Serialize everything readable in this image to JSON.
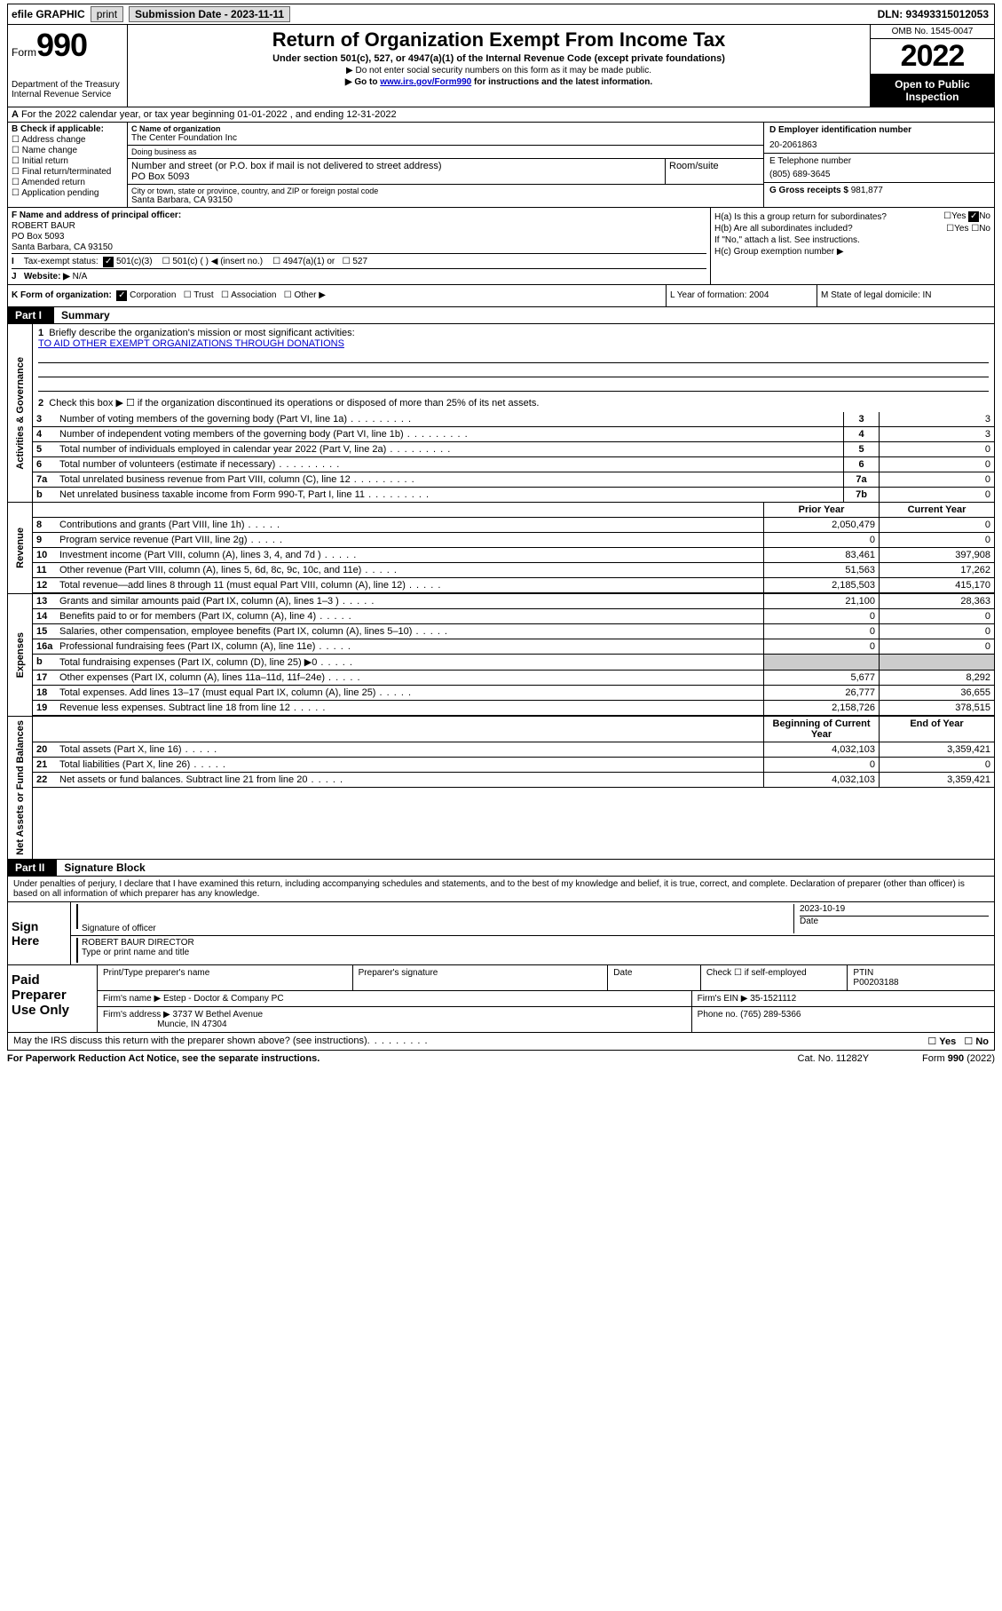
{
  "topbar": {
    "efile": "efile GRAPHIC",
    "print": "print",
    "sub_label": "Submission Date - 2023-11-11",
    "dln": "DLN: 93493315012053"
  },
  "header": {
    "form_word": "Form",
    "form_num": "990",
    "title": "Return of Organization Exempt From Income Tax",
    "sub1": "Under section 501(c), 527, or 4947(a)(1) of the Internal Revenue Code (except private foundations)",
    "sub2": "Do not enter social security numbers on this form as it may be made public.",
    "sub3_pre": "Go to ",
    "sub3_link": "www.irs.gov/Form990",
    "sub3_post": " for instructions and the latest information.",
    "dept": "Department of the Treasury",
    "irs_line": "Internal Revenue Service",
    "omb": "OMB No. 1545-0047",
    "year": "2022",
    "open": "Open to Public Inspection"
  },
  "lineA": "For the 2022 calendar year, or tax year beginning 01-01-2022   , and ending 12-31-2022",
  "entity": {
    "b_label": "B Check if applicable:",
    "checks": [
      "Address change",
      "Name change",
      "Initial return",
      "Final return/terminated",
      "Amended return",
      "Application pending"
    ],
    "c_lbl": "C Name of organization",
    "c_val": "The Center Foundation Inc",
    "dba_lbl": "Doing business as",
    "dba_val": "",
    "addr_lbl": "Number and street (or P.O. box if mail is not delivered to street address)",
    "addr_val": "PO Box 5093",
    "suite_lbl": "Room/suite",
    "city_lbl": "City or town, state or province, country, and ZIP or foreign postal code",
    "city_val": "Santa Barbara, CA  93150",
    "d_lbl": "D Employer identification number",
    "d_val": "20-2061863",
    "e_lbl": "E Telephone number",
    "e_val": "(805) 689-3645",
    "g_lbl": "G Gross receipts $",
    "g_val": "981,877"
  },
  "fhi": {
    "f_lbl": "F  Name and address of principal officer:",
    "f_name": "ROBERT BAUR",
    "f_addr1": "PO Box 5093",
    "f_addr2": "Santa Barbara, CA  93150",
    "i_lbl": "Tax-exempt status:",
    "i_501c3": "501(c)(3)",
    "i_501c": "501(c) (  ) ◀ (insert no.)",
    "i_4947": "4947(a)(1) or",
    "i_527": "527",
    "j_lbl": "Website: ▶",
    "j_val": "N/A",
    "ha": "H(a)  Is this a group return for subordinates?",
    "hb": "H(b)  Are all subordinates included?",
    "hb_note": "If \"No,\" attach a list. See instructions.",
    "hc": "H(c)  Group exemption number ▶",
    "yes": "Yes",
    "no": "No"
  },
  "klm": {
    "k": "K Form of organization:",
    "k_corp": "Corporation",
    "k_trust": "Trust",
    "k_assoc": "Association",
    "k_other": "Other ▶",
    "l": "L Year of formation: 2004",
    "m": "M State of legal domicile: IN"
  },
  "part1": {
    "tag": "Part I",
    "title": "Summary"
  },
  "mission": {
    "q1": "Briefly describe the organization's mission or most significant activities:",
    "q1_text": "TO AID OTHER EXEMPT ORGANIZATIONS THROUGH DONATIONS",
    "q2": "Check this box ▶ ☐  if the organization discontinued its operations or disposed of more than 25% of its net assets."
  },
  "gov_rows": [
    {
      "n": "3",
      "t": "Number of voting members of the governing body (Part VI, line 1a)",
      "box": "3",
      "v": "3"
    },
    {
      "n": "4",
      "t": "Number of independent voting members of the governing body (Part VI, line 1b)",
      "box": "4",
      "v": "3"
    },
    {
      "n": "5",
      "t": "Total number of individuals employed in calendar year 2022 (Part V, line 2a)",
      "box": "5",
      "v": "0"
    },
    {
      "n": "6",
      "t": "Total number of volunteers (estimate if necessary)",
      "box": "6",
      "v": "0"
    },
    {
      "n": "7a",
      "t": "Total unrelated business revenue from Part VIII, column (C), line 12",
      "box": "7a",
      "v": "0"
    },
    {
      "n": "b",
      "t": "Net unrelated business taxable income from Form 990-T, Part I, line 11",
      "box": "7b",
      "v": "0"
    }
  ],
  "col_hdr": {
    "prior": "Prior Year",
    "current": "Current Year"
  },
  "rev_rows": [
    {
      "n": "8",
      "t": "Contributions and grants (Part VIII, line 1h)",
      "v1": "2,050,479",
      "v2": "0"
    },
    {
      "n": "9",
      "t": "Program service revenue (Part VIII, line 2g)",
      "v1": "0",
      "v2": "0"
    },
    {
      "n": "10",
      "t": "Investment income (Part VIII, column (A), lines 3, 4, and 7d )",
      "v1": "83,461",
      "v2": "397,908"
    },
    {
      "n": "11",
      "t": "Other revenue (Part VIII, column (A), lines 5, 6d, 8c, 9c, 10c, and 11e)",
      "v1": "51,563",
      "v2": "17,262"
    },
    {
      "n": "12",
      "t": "Total revenue—add lines 8 through 11 (must equal Part VIII, column (A), line 12)",
      "v1": "2,185,503",
      "v2": "415,170"
    }
  ],
  "exp_rows": [
    {
      "n": "13",
      "t": "Grants and similar amounts paid (Part IX, column (A), lines 1–3 )",
      "v1": "21,100",
      "v2": "28,363"
    },
    {
      "n": "14",
      "t": "Benefits paid to or for members (Part IX, column (A), line 4)",
      "v1": "0",
      "v2": "0"
    },
    {
      "n": "15",
      "t": "Salaries, other compensation, employee benefits (Part IX, column (A), lines 5–10)",
      "v1": "0",
      "v2": "0"
    },
    {
      "n": "16a",
      "t": "Professional fundraising fees (Part IX, column (A), line 11e)",
      "v1": "0",
      "v2": "0"
    },
    {
      "n": "b",
      "t": "Total fundraising expenses (Part IX, column (D), line 25) ▶0",
      "v1": "",
      "v2": "",
      "shade": true
    },
    {
      "n": "17",
      "t": "Other expenses (Part IX, column (A), lines 11a–11d, 11f–24e)",
      "v1": "5,677",
      "v2": "8,292"
    },
    {
      "n": "18",
      "t": "Total expenses. Add lines 13–17 (must equal Part IX, column (A), line 25)",
      "v1": "26,777",
      "v2": "36,655"
    },
    {
      "n": "19",
      "t": "Revenue less expenses. Subtract line 18 from line 12",
      "v1": "2,158,726",
      "v2": "378,515"
    }
  ],
  "na_hdr": {
    "beg": "Beginning of Current Year",
    "end": "End of Year"
  },
  "na_rows": [
    {
      "n": "20",
      "t": "Total assets (Part X, line 16)",
      "v1": "4,032,103",
      "v2": "3,359,421"
    },
    {
      "n": "21",
      "t": "Total liabilities (Part X, line 26)",
      "v1": "0",
      "v2": "0"
    },
    {
      "n": "22",
      "t": "Net assets or fund balances. Subtract line 21 from line 20",
      "v1": "4,032,103",
      "v2": "3,359,421"
    }
  ],
  "part2": {
    "tag": "Part II",
    "title": "Signature Block"
  },
  "jurat": "Under penalties of perjury, I declare that I have examined this return, including accompanying schedules and statements, and to the best of my knowledge and belief, it is true, correct, and complete. Declaration of preparer (other than officer) is based on all information of which preparer has any knowledge.",
  "sign": {
    "here": "Sign Here",
    "sig_of": "Signature of officer",
    "date_lbl": "Date",
    "date_val": "2023-10-19",
    "name": "ROBERT BAUR  DIRECTOR",
    "name_lbl": "Type or print name and title"
  },
  "prep": {
    "label": "Paid Preparer Use Only",
    "pt_name_lbl": "Print/Type preparer's name",
    "pt_name": "",
    "sig_lbl": "Preparer's signature",
    "date_lbl": "Date",
    "self_emp": "Check ☐ if self-employed",
    "ptin_lbl": "PTIN",
    "ptin": "P00203188",
    "firm_name_lbl": "Firm's name  ▶",
    "firm_name": "Estep - Doctor & Company PC",
    "firm_ein_lbl": "Firm's EIN ▶",
    "firm_ein": "35-1521112",
    "firm_addr_lbl": "Firm's address ▶",
    "firm_addr1": "3737 W Bethel Avenue",
    "firm_addr2": "Muncie, IN  47304",
    "phone_lbl": "Phone no.",
    "phone": "(765) 289-5366"
  },
  "irs_discuss": "May the IRS discuss this return with the preparer shown above? (see instructions)",
  "footer": {
    "pra": "For Paperwork Reduction Act Notice, see the separate instructions.",
    "cat": "Cat. No. 11282Y",
    "form": "Form 990 (2022)"
  },
  "vlabels": {
    "gov": "Activities & Governance",
    "rev": "Revenue",
    "exp": "Expenses",
    "na": "Net Assets or Fund Balances"
  }
}
